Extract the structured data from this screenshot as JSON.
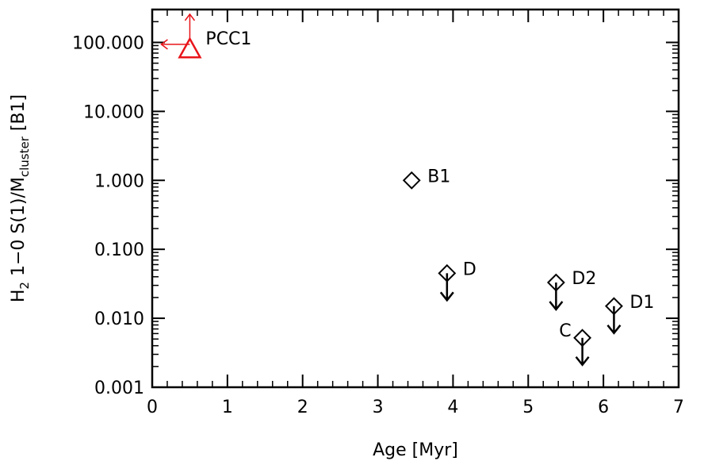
{
  "chart_data": {
    "type": "scatter",
    "title": "",
    "xlabel": "Age [Myr]",
    "ylabel_parts": {
      "main": "H",
      "sub1": "2",
      "mid": " 1−0 S(1)/M",
      "sub2": "cluster",
      "end": " [B1]"
    },
    "xlim": [
      0,
      7
    ],
    "ylim": [
      0.001,
      300
    ],
    "yscale": "log",
    "x_ticks": [
      "0",
      "1",
      "2",
      "3",
      "4",
      "5",
      "6",
      "7"
    ],
    "y_ticks": [
      "0.001",
      "0.010",
      "0.100",
      "1.000",
      "10.000",
      "100.000"
    ],
    "y_tick_values": [
      0.001,
      0.01,
      0.1,
      1,
      10,
      100
    ],
    "points": [
      {
        "label": "PCC1",
        "x": 0.5,
        "y": 80,
        "marker": "triangle",
        "color": "#e8141a",
        "limit": "lower-y-upper-x"
      },
      {
        "label": "B1",
        "x": 3.45,
        "y": 1.0,
        "marker": "diamond",
        "color": "#000000",
        "limit": "none"
      },
      {
        "label": "D",
        "x": 3.92,
        "y": 0.045,
        "marker": "diamond",
        "color": "#000000",
        "limit": "upper-y"
      },
      {
        "label": "D2",
        "x": 5.37,
        "y": 0.033,
        "marker": "diamond",
        "color": "#000000",
        "limit": "upper-y"
      },
      {
        "label": "D1",
        "x": 6.14,
        "y": 0.015,
        "marker": "diamond",
        "color": "#000000",
        "limit": "upper-y"
      },
      {
        "label": "C",
        "x": 5.72,
        "y": 0.0052,
        "marker": "diamond",
        "color": "#000000",
        "limit": "upper-y"
      }
    ]
  }
}
